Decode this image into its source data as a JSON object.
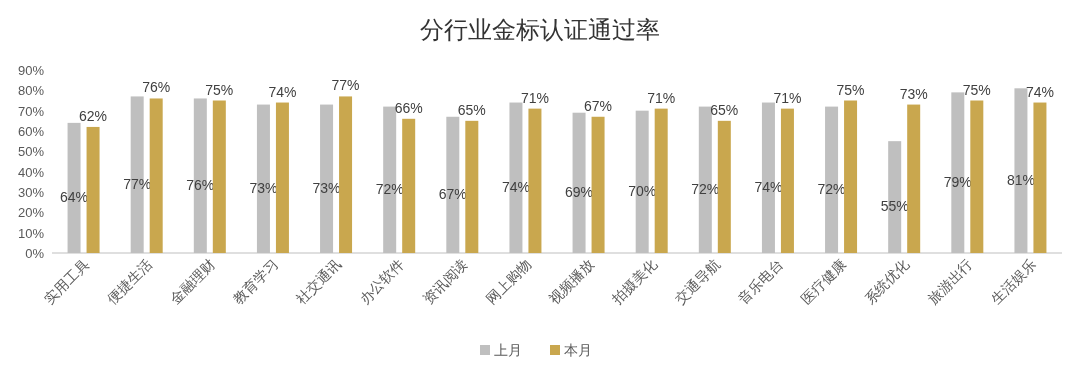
{
  "chart_data": {
    "type": "bar",
    "title": "分行业金标认证通过率",
    "categories": [
      "实用工具",
      "便捷生活",
      "金融理财",
      "教育学习",
      "社交通讯",
      "办公软件",
      "资讯阅读",
      "网上购物",
      "视频播放",
      "拍摄美化",
      "交通导航",
      "音乐电台",
      "医疗健康",
      "系统优化",
      "旅游出行",
      "生活娱乐"
    ],
    "series": [
      {
        "name": "上月",
        "color": "#bfbfbf",
        "values": [
          64,
          77,
          76,
          73,
          73,
          72,
          67,
          74,
          69,
          70,
          72,
          74,
          72,
          55,
          79,
          81
        ],
        "value_labels": [
          "64%",
          "77%",
          "76%",
          "73%",
          "73%",
          "72%",
          "67%",
          "74%",
          "69%",
          "70%",
          "72%",
          "74%",
          "72%",
          "55%",
          "79%",
          "81%"
        ]
      },
      {
        "name": "本月",
        "color": "#c9a74e",
        "values": [
          62,
          76,
          75,
          74,
          77,
          66,
          65,
          71,
          67,
          71,
          65,
          71,
          75,
          73,
          75,
          74
        ],
        "value_labels": [
          "62%",
          "76%",
          "75%",
          "74%",
          "77%",
          "66%",
          "65%",
          "71%",
          "67%",
          "71%",
          "65%",
          "71%",
          "75%",
          "73%",
          "75%",
          "74%"
        ]
      }
    ],
    "ylim": [
      0,
      90
    ],
    "yticks": [
      {
        "value": 0,
        "label": "0%"
      },
      {
        "value": 10,
        "label": "10%"
      },
      {
        "value": 20,
        "label": "20%"
      },
      {
        "value": 30,
        "label": "30%"
      },
      {
        "value": 40,
        "label": "40%"
      },
      {
        "value": 50,
        "label": "50%"
      },
      {
        "value": 60,
        "label": "60%"
      },
      {
        "value": 70,
        "label": "70%"
      },
      {
        "value": 80,
        "label": "80%"
      },
      {
        "value": 90,
        "label": "90%"
      }
    ],
    "legend": "bottom"
  }
}
